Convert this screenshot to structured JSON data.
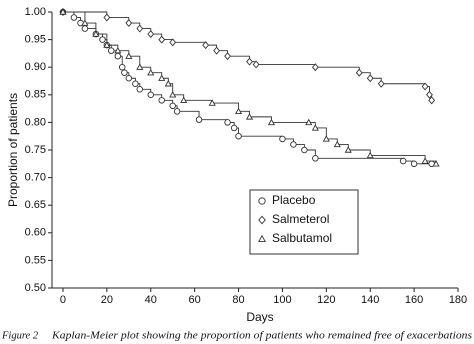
{
  "chart_data": {
    "type": "step",
    "x_label": "Days",
    "y_label": "Proportion of patients",
    "caption_label": "Figure 2",
    "caption": "Kaplan-Meier plot showing the proportion of patients who remained free of exacerbations",
    "xlim": [
      -5,
      180
    ],
    "ylim": [
      0.5,
      1.0
    ],
    "xticks": [
      0,
      20,
      40,
      60,
      80,
      100,
      120,
      140,
      160,
      180
    ],
    "yticks": [
      {
        "value": 0.5,
        "label": "0.50"
      },
      {
        "value": 0.55,
        "label": "0.55"
      },
      {
        "value": 0.6,
        "label": "0.60"
      },
      {
        "value": 0.65,
        "label": "0.65"
      },
      {
        "value": 0.7,
        "label": "0.70"
      },
      {
        "value": 0.75,
        "label": "0.75"
      },
      {
        "value": 0.8,
        "label": "0.80"
      },
      {
        "value": 0.85,
        "label": "0.85"
      },
      {
        "value": 0.9,
        "label": "0.90"
      },
      {
        "value": 0.95,
        "label": "0.95"
      },
      {
        "value": 1.0,
        "label": "1.00"
      }
    ],
    "series": [
      {
        "name": "Placebo",
        "marker": "circle",
        "color": "#333333",
        "x": [
          0,
          5,
          8,
          10,
          15,
          18,
          20,
          22,
          25,
          27,
          28,
          30,
          33,
          35,
          40,
          45,
          50,
          52,
          62,
          75,
          78,
          80,
          100,
          105,
          110,
          115,
          155,
          160,
          168
        ],
        "values": [
          1.0,
          0.99,
          0.98,
          0.97,
          0.96,
          0.95,
          0.94,
          0.93,
          0.92,
          0.9,
          0.89,
          0.88,
          0.87,
          0.86,
          0.85,
          0.84,
          0.83,
          0.82,
          0.805,
          0.8,
          0.79,
          0.775,
          0.77,
          0.76,
          0.75,
          0.735,
          0.73,
          0.725,
          0.725
        ]
      },
      {
        "name": "Salmeterol",
        "marker": "diamond",
        "color": "#333333",
        "x": [
          0,
          20,
          30,
          35,
          40,
          45,
          50,
          65,
          70,
          75,
          85,
          88,
          115,
          135,
          140,
          145,
          165,
          167,
          168
        ],
        "values": [
          1.0,
          0.99,
          0.98,
          0.97,
          0.96,
          0.95,
          0.945,
          0.94,
          0.93,
          0.92,
          0.91,
          0.905,
          0.9,
          0.89,
          0.88,
          0.87,
          0.865,
          0.85,
          0.84
        ]
      },
      {
        "name": "Salbutamol",
        "marker": "triangle",
        "color": "#333333",
        "x": [
          0,
          10,
          15,
          20,
          25,
          30,
          35,
          40,
          45,
          48,
          50,
          55,
          68,
          80,
          85,
          95,
          112,
          115,
          120,
          125,
          130,
          140,
          165,
          170
        ],
        "values": [
          1.0,
          0.98,
          0.96,
          0.94,
          0.93,
          0.92,
          0.9,
          0.89,
          0.88,
          0.87,
          0.85,
          0.84,
          0.835,
          0.82,
          0.81,
          0.8,
          0.8,
          0.79,
          0.77,
          0.76,
          0.75,
          0.74,
          0.73,
          0.725
        ]
      }
    ]
  }
}
